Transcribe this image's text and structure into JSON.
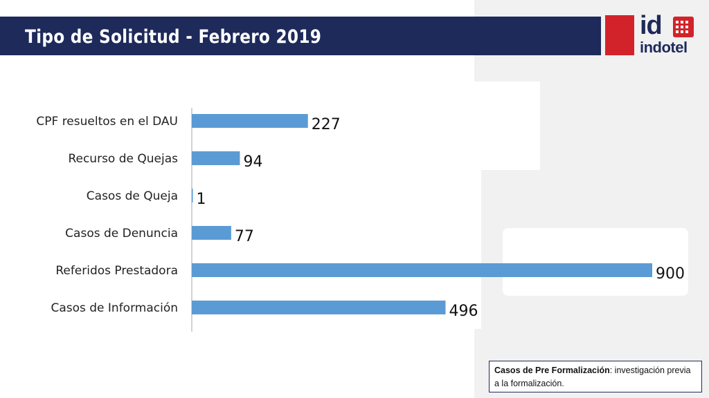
{
  "slide": {
    "title": "Tipo de Solicitud - Febrero 2019"
  },
  "logo": {
    "mark": "id",
    "name": "indotel"
  },
  "note": {
    "term": "Casos de Pre Formalización",
    "definition": ": investigación previa a la formalización."
  },
  "colors": {
    "title_bar": "#1e2a5a",
    "bar": "#5b9bd5",
    "logo_red": "#d2232a"
  },
  "chart_data": {
    "type": "bar",
    "orientation": "horizontal",
    "title": "",
    "xlabel": "",
    "ylabel": "",
    "categories": [
      "CPF resueltos en el DAU",
      "Recurso de Quejas",
      "Casos de Queja",
      "Casos de Denuncia",
      "Referidos Prestadora",
      "Casos de Información"
    ],
    "values": [
      227,
      94,
      1,
      77,
      900,
      496
    ],
    "xlim": [
      0,
      900
    ],
    "grid": false,
    "legend": "none",
    "data_labels": true
  }
}
